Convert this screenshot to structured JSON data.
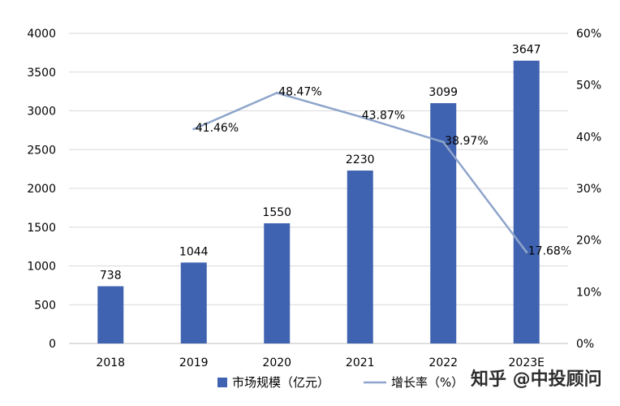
{
  "chart_data": {
    "type": "bar+line",
    "categories": [
      "2018",
      "2019",
      "2020",
      "2021",
      "2022",
      "2023E"
    ],
    "series": [
      {
        "name": "市场规模（亿元）",
        "type": "bar",
        "axis": "left",
        "values": [
          738,
          1044,
          1550,
          2230,
          3099,
          3647
        ],
        "labels": [
          "738",
          "1044",
          "1550",
          "2230",
          "3099",
          "3647"
        ]
      },
      {
        "name": "增长率（%）",
        "type": "line",
        "axis": "right",
        "values": [
          null,
          41.46,
          48.47,
          43.87,
          38.97,
          17.68
        ],
        "labels": [
          "",
          "41.46%",
          "48.47%",
          "43.87%",
          "38.97%",
          "17.68%"
        ]
      }
    ],
    "y_left": {
      "ylim": [
        0,
        4000
      ],
      "ticks": [
        "0",
        "500",
        "1000",
        "1500",
        "2000",
        "2500",
        "3000",
        "3500",
        "4000"
      ]
    },
    "y_right": {
      "ylim": [
        0,
        60
      ],
      "ticks": [
        "0%",
        "10%",
        "20%",
        "30%",
        "40%",
        "50%",
        "60%"
      ]
    },
    "legend_position": "bottom-center",
    "grid": true,
    "colors": {
      "bar": "#4063b1",
      "line": "#8ea5cb",
      "grid": "#d9d9d9",
      "axis": "#bfbfbf"
    }
  },
  "watermark": "知乎 @中投顾问"
}
